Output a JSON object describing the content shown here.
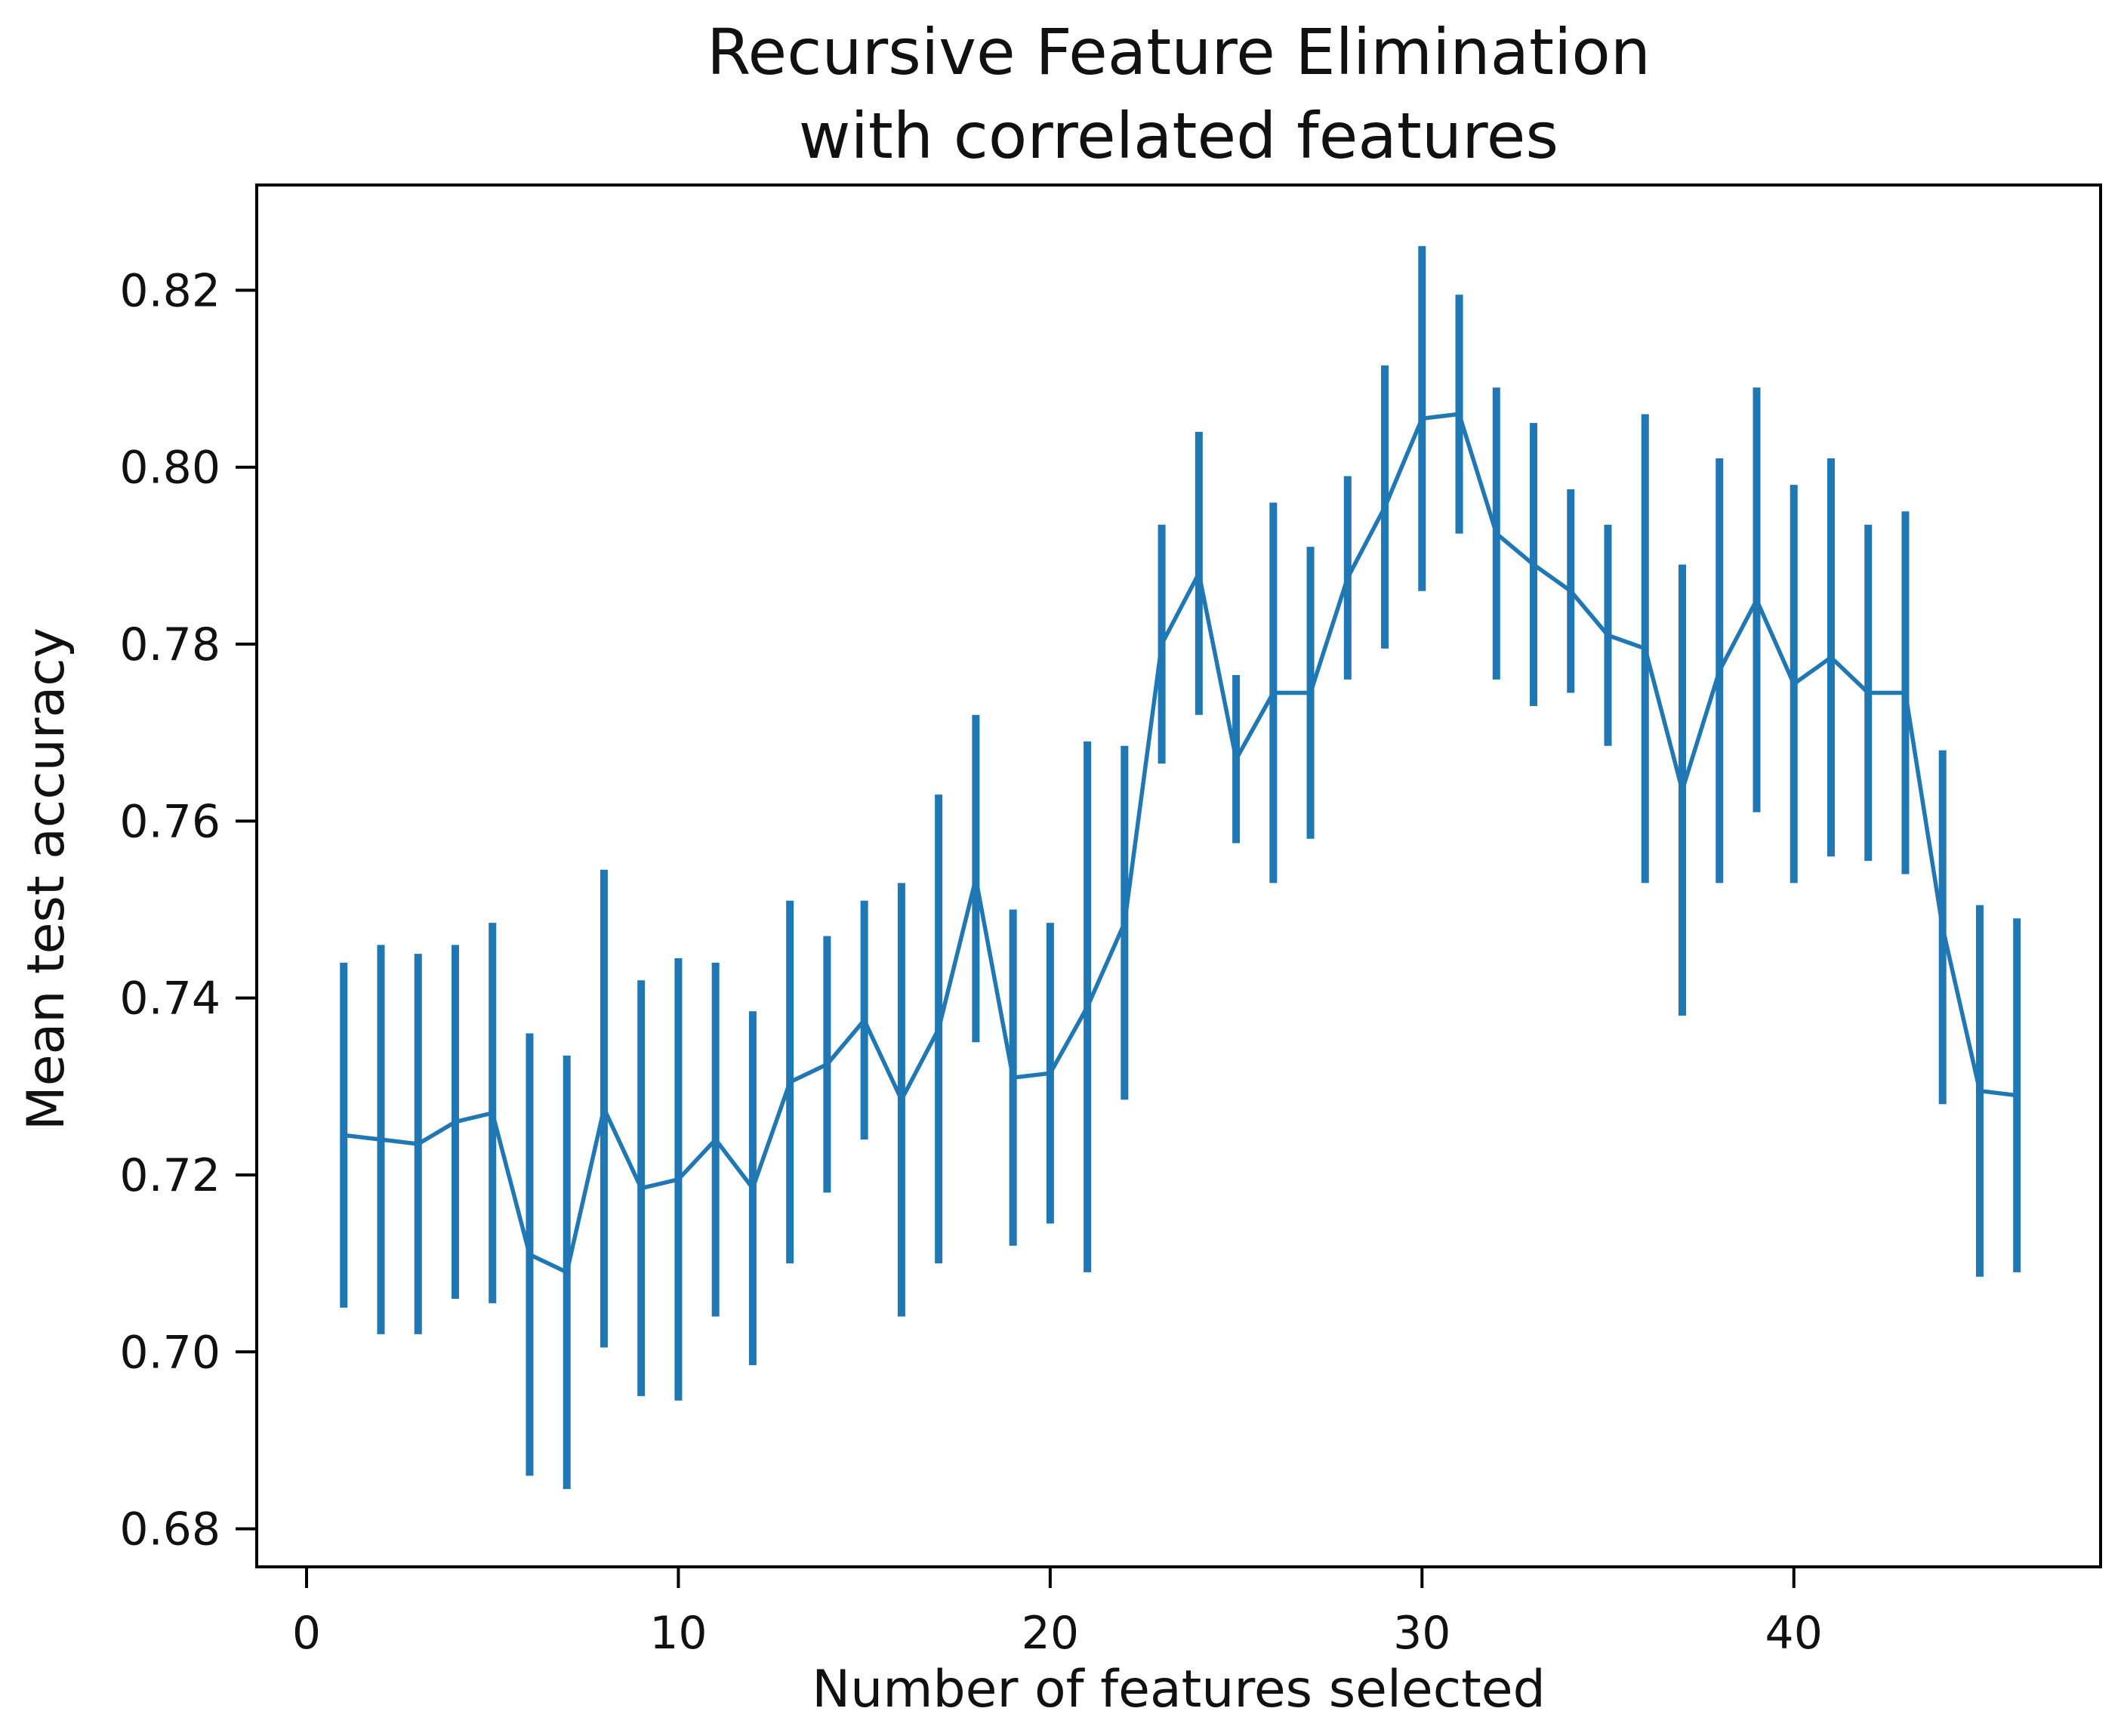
{
  "chart_data": {
    "type": "line",
    "title": "Recursive Feature Elimination with correlated features",
    "title_lines": [
      "Recursive Feature Elimination",
      "with correlated features"
    ],
    "xlabel": "Number of features selected",
    "ylabel": "Mean test accuracy",
    "legend": null,
    "grid": false,
    "line_color": "#1f77b4",
    "frame_color": "#000000",
    "xlim": [
      -1.34,
      48.25
    ],
    "ylim": [
      0.6757,
      0.8319
    ],
    "x_ticks": {
      "values": [
        0,
        10,
        20,
        30,
        40
      ],
      "labels": [
        "0",
        "10",
        "20",
        "30",
        "40"
      ]
    },
    "y_ticks": {
      "values": [
        0.68,
        0.7,
        0.72,
        0.74,
        0.76,
        0.78,
        0.8,
        0.82
      ],
      "labels": [
        "0.68",
        "0.70",
        "0.72",
        "0.74",
        "0.76",
        "0.78",
        "0.80",
        "0.82"
      ]
    },
    "series": [
      {
        "name": "mean test accuracy",
        "x": [
          1,
          2,
          3,
          4,
          5,
          6,
          7,
          8,
          9,
          10,
          11,
          12,
          13,
          14,
          15,
          16,
          17,
          18,
          19,
          20,
          21,
          22,
          23,
          24,
          25,
          26,
          27,
          28,
          29,
          30,
          31,
          32,
          33,
          34,
          35,
          36,
          37,
          38,
          39,
          40,
          41,
          42,
          43,
          44,
          45,
          46
        ],
        "y": [
          0.7245,
          0.724,
          0.7235,
          0.726,
          0.727,
          0.711,
          0.709,
          0.7275,
          0.7185,
          0.7195,
          0.724,
          0.7185,
          0.7305,
          0.7325,
          0.7375,
          0.7285,
          0.7365,
          0.7535,
          0.731,
          0.7315,
          0.739,
          0.7485,
          0.78,
          0.788,
          0.767,
          0.7745,
          0.7745,
          0.7875,
          0.7955,
          0.8055,
          0.806,
          0.7925,
          0.789,
          0.786,
          0.781,
          0.7795,
          0.7635,
          0.777,
          0.785,
          0.7755,
          0.7785,
          0.7745,
          0.7745,
          0.748,
          0.7295,
          0.729
        ],
        "yerr": [
          0.0195,
          0.022,
          0.0215,
          0.02,
          0.0215,
          0.025,
          0.0245,
          0.027,
          0.0235,
          0.025,
          0.02,
          0.02,
          0.0205,
          0.0145,
          0.0135,
          0.0245,
          0.0265,
          0.0185,
          0.019,
          0.017,
          0.03,
          0.02,
          0.0135,
          0.016,
          0.0095,
          0.0215,
          0.0165,
          0.0115,
          0.016,
          0.0195,
          0.0135,
          0.0165,
          0.016,
          0.0115,
          0.0125,
          0.0265,
          0.0255,
          0.024,
          0.024,
          0.0225,
          0.0225,
          0.019,
          0.0205,
          0.02,
          0.021,
          0.02
        ]
      }
    ]
  }
}
